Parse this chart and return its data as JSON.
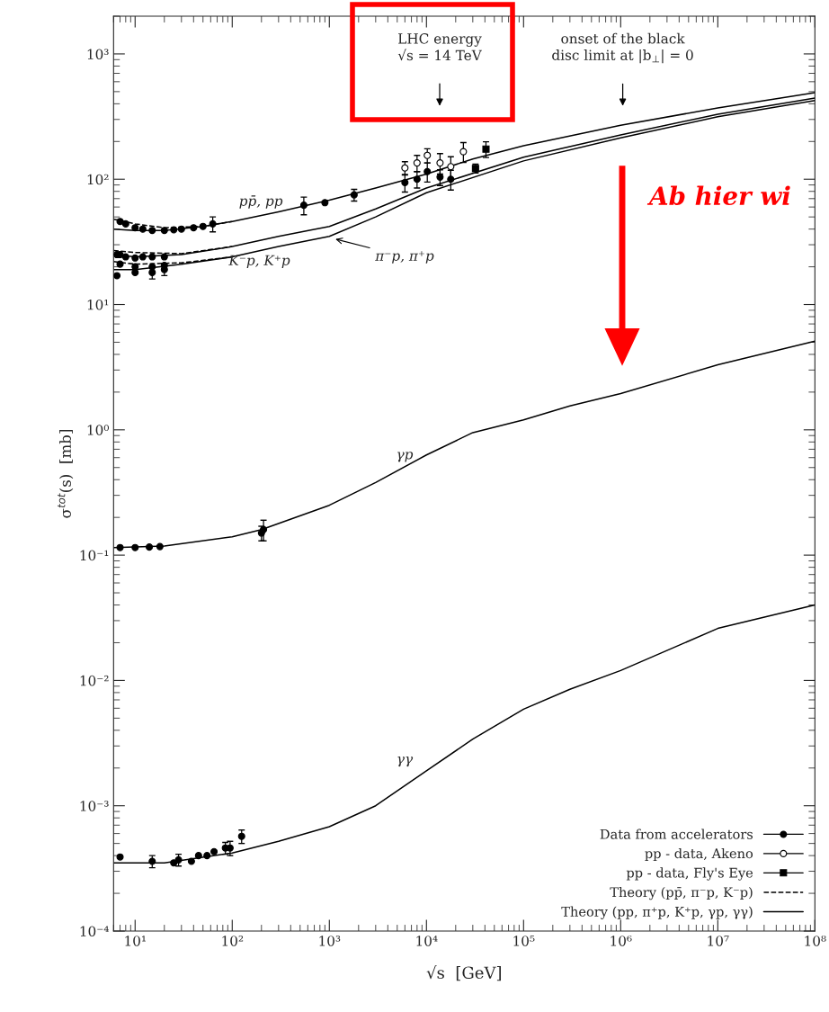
{
  "chart_data": {
    "type": "line",
    "xlabel": "√s  [GeV]",
    "ylabel": "σ$^{tot}$(s)  [mb]",
    "log": "xy",
    "xlim": [
      6,
      100000000
    ],
    "ylim": [
      0.0001,
      2000
    ],
    "xticks": [
      {
        "value": 10,
        "label": "10¹"
      },
      {
        "value": 100,
        "label": "10²"
      },
      {
        "value": 1000,
        "label": "10³"
      },
      {
        "value": 10000,
        "label": "10⁴"
      },
      {
        "value": 100000,
        "label": "10⁵"
      },
      {
        "value": 1000000,
        "label": "10⁶"
      },
      {
        "value": 10000000,
        "label": "10⁷"
      },
      {
        "value": 100000000,
        "label": "10⁸"
      }
    ],
    "yticks": [
      {
        "value": 0.0001,
        "label": "10⁻⁴"
      },
      {
        "value": 0.001,
        "label": "10⁻³"
      },
      {
        "value": 0.01,
        "label": "10⁻²"
      },
      {
        "value": 0.1,
        "label": "10⁻¹"
      },
      {
        "value": 1,
        "label": "10⁰"
      },
      {
        "value": 10,
        "label": "10¹"
      },
      {
        "value": 100,
        "label": "10²"
      },
      {
        "value": 1000,
        "label": "10³"
      }
    ],
    "grid": false,
    "legend": "bottom right",
    "series": [
      {
        "name": "Data from accelerators",
        "type": "scatter",
        "marker": "circle",
        "color": "#000000",
        "x": [
          7,
          8,
          10,
          12,
          15,
          20,
          25,
          30,
          40,
          50,
          60,
          63,
          546,
          900,
          1800,
          6.5,
          7,
          8,
          10,
          12,
          15,
          20,
          7,
          10,
          15,
          20,
          6.5,
          10,
          15,
          20,
          7,
          10,
          14,
          18,
          200,
          210,
          7,
          14,
          15,
          25,
          28,
          38,
          45,
          55,
          65,
          85,
          95,
          125,
          6000,
          8000,
          10200,
          13800,
          17800
        ],
        "values": [
          46,
          44,
          41,
          40,
          39,
          39,
          39.5,
          40,
          41,
          42,
          null,
          44,
          62,
          65,
          75,
          25,
          25,
          24,
          23.5,
          24,
          24,
          24,
          21,
          20,
          20,
          20.5,
          17,
          18,
          18,
          19,
          0.115,
          0.115,
          0.116,
          0.117,
          0.15,
          0.16,
          0.00039,
          null,
          0.00036,
          0.00035,
          0.00037,
          0.00036,
          0.0004,
          0.0004,
          0.00043,
          0.00046,
          0.00046,
          0.00057,
          94,
          100,
          115,
          104,
          100
        ],
        "errors": [
          null,
          null,
          null,
          null,
          null,
          null,
          null,
          null,
          null,
          null,
          null,
          6,
          10,
          null,
          8,
          null,
          null,
          null,
          null,
          null,
          null,
          null,
          null,
          null,
          null,
          null,
          null,
          null,
          2,
          2,
          null,
          null,
          null,
          null,
          0.02,
          0.03,
          null,
          null,
          4e-05,
          null,
          4e-05,
          null,
          null,
          null,
          null,
          5e-05,
          6e-05,
          7e-05,
          15,
          15,
          20,
          15,
          18
        ]
      },
      {
        "name": "pp - data, Akeno",
        "type": "scatter",
        "marker": "circle",
        "color": "#ffffff",
        "x": [
          6000,
          8000,
          10200,
          13800,
          17800,
          24000
        ],
        "values": [
          123,
          135,
          155,
          135,
          126,
          166
        ],
        "errors": [
          15,
          20,
          20,
          25,
          25,
          30
        ]
      },
      {
        "name": "pp - data, Fly's Eye",
        "type": "scatter",
        "marker": "square",
        "color": "#000000",
        "x": [
          32000,
          41000
        ],
        "values": [
          122,
          174
        ],
        "errors": [
          10,
          25
        ]
      },
      {
        "name": "Theory (pp̄, π⁻p, K⁻p)",
        "color": "#000000",
        "line_style": "dashed",
        "x": [
          6,
          10,
          20,
          50,
          100
        ],
        "values": [
          48,
          44,
          41,
          42,
          46
        ]
      },
      {
        "color": "#000000",
        "line_style": "dashed",
        "x": [
          6,
          10,
          30,
          100
        ],
        "values": [
          27,
          26,
          25.5,
          29
        ]
      },
      {
        "color": "#000000",
        "line_style": "dashed",
        "x": [
          6,
          10,
          30,
          100
        ],
        "values": [
          22,
          21,
          21.5,
          24
        ]
      },
      {
        "name": "Theory (pp, π⁺p, K⁺p, γp, γγ)",
        "color": "#000000",
        "line_style": "solid",
        "x": [
          6,
          10,
          20,
          50,
          100,
          300,
          1000,
          3000,
          10000,
          30000,
          100000,
          1000000,
          10000000,
          100000000
        ],
        "values": [
          40,
          39,
          39,
          42,
          46,
          55,
          68,
          85,
          110,
          145,
          185,
          270,
          370,
          490
        ]
      },
      {
        "color": "#000000",
        "line_style": "solid",
        "x": [
          6,
          10,
          30,
          100,
          300,
          1000,
          3000,
          10000,
          100000,
          1000000,
          10000000,
          100000000
        ],
        "values": [
          25,
          24,
          25,
          29,
          35,
          42,
          58,
          85,
          150,
          226,
          330,
          445
        ]
      },
      {
        "color": "#000000",
        "line_style": "solid",
        "x": [
          6,
          10,
          30,
          100,
          300,
          1000,
          3000,
          10000,
          100000,
          1000000,
          10000000,
          100000000
        ],
        "values": [
          19,
          19,
          21,
          24,
          29,
          35,
          50,
          78,
          140,
          214,
          315,
          425
        ]
      },
      {
        "color": "#000000",
        "line_style": "solid",
        "x": [
          6,
          20,
          100,
          200,
          1000,
          3000,
          10000,
          30000,
          100000,
          300000,
          1000000,
          10000000,
          100000000
        ],
        "values": [
          0.115,
          0.118,
          0.14,
          0.16,
          0.25,
          0.38,
          0.63,
          0.95,
          1.2,
          1.55,
          1.95,
          3.3,
          5.1
        ]
      },
      {
        "color": "#000000",
        "line_style": "solid",
        "x": [
          6,
          20,
          100,
          300,
          1000,
          3000,
          10000,
          30000,
          100000,
          300000,
          1000000,
          10000000,
          100000000
        ],
        "values": [
          0.00035,
          0.00035,
          0.00042,
          0.00052,
          0.00068,
          0.001,
          0.0019,
          0.0034,
          0.0059,
          0.0085,
          0.012,
          0.026,
          0.04
        ]
      }
    ],
    "annotations": [
      "pp̄, pp",
      "π⁻p, π⁺p",
      "K⁻p, K⁺p",
      "γp",
      "γγ",
      "LHC energy\n√s = 14 TeV",
      "onset of the black\ndisc limit at |b$_{⊥}$| = 0",
      "Ab hier wi"
    ]
  }
}
